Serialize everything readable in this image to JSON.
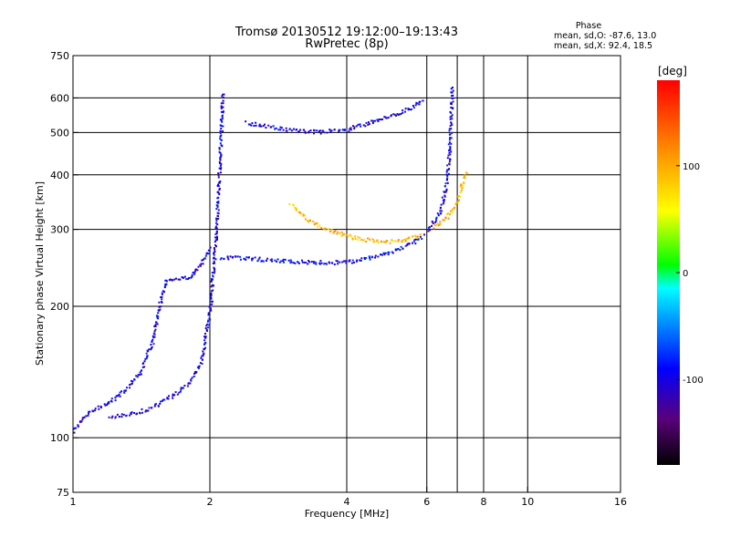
{
  "chart_data": {
    "type": "scatter",
    "title": "Tromsø 20130512 19:12:00–19:13:43",
    "subtitle": "RwPretec (8p)",
    "xlabel": "Frequency [MHz]",
    "ylabel": "Stationary phase Virtual Height [km]",
    "x_scale": "log",
    "y_scale": "log",
    "xlim": [
      1,
      16
    ],
    "ylim": [
      75,
      750
    ],
    "x_ticks": [
      1,
      2,
      4,
      6,
      8,
      10,
      16
    ],
    "x_tick_labels": [
      "1",
      "2",
      "4",
      "6",
      "8",
      "10",
      "16"
    ],
    "x_grid": [
      2,
      4,
      6,
      7,
      8,
      10
    ],
    "y_ticks": [
      75,
      100,
      200,
      300,
      400,
      500,
      600,
      750
    ],
    "y_tick_labels": [
      "75",
      "100",
      "200",
      "300",
      "400",
      "500",
      "600",
      "750"
    ],
    "y_grid": [
      100,
      200,
      300,
      400,
      500,
      600
    ],
    "stats": {
      "heading": "Phase",
      "line_o": "mean, sd,O: -87.6, 13.0",
      "line_x": "mean, sd,X:  92.4, 18.5"
    },
    "colorbar": {
      "label": "[deg]",
      "range": [
        -180,
        180
      ],
      "ticks": [
        -100,
        0,
        100
      ],
      "tick_labels": [
        "-100",
        "0",
        "100"
      ]
    },
    "traces": [
      {
        "mode": "O",
        "phase": -100,
        "points": [
          [
            1.0,
            104
          ],
          [
            1.05,
            112
          ],
          [
            1.1,
            116
          ],
          [
            1.2,
            121
          ],
          [
            1.3,
            129
          ],
          [
            1.4,
            141
          ],
          [
            1.5,
            170
          ],
          [
            1.55,
            205
          ],
          [
            1.6,
            232
          ],
          [
            1.8,
            233
          ],
          [
            1.9,
            250
          ],
          [
            2.0,
            275
          ]
        ]
      },
      {
        "mode": "O",
        "phase": -100,
        "points": [
          [
            1.2,
            112
          ],
          [
            1.4,
            115
          ],
          [
            1.55,
            120
          ],
          [
            1.7,
            128
          ],
          [
            1.8,
            135
          ],
          [
            1.9,
            148
          ],
          [
            1.95,
            170
          ],
          [
            2.0,
            200
          ],
          [
            2.02,
            230
          ],
          [
            2.04,
            260
          ],
          [
            2.06,
            300
          ],
          [
            2.08,
            360
          ],
          [
            2.1,
            450
          ],
          [
            2.12,
            550
          ],
          [
            2.13,
            620
          ]
        ]
      },
      {
        "mode": "O",
        "phase": -95,
        "points": [
          [
            2.1,
            260
          ],
          [
            2.3,
            259
          ],
          [
            2.6,
            257
          ],
          [
            3.0,
            254
          ],
          [
            3.5,
            253
          ],
          [
            4.0,
            253
          ],
          [
            4.5,
            260
          ],
          [
            5.0,
            268
          ],
          [
            5.5,
            278
          ],
          [
            5.9,
            292
          ]
        ]
      },
      {
        "mode": "O",
        "phase": -100,
        "points": [
          [
            2.4,
            528
          ],
          [
            2.6,
            522
          ],
          [
            3.0,
            508
          ],
          [
            3.5,
            504
          ],
          [
            4.0,
            510
          ],
          [
            4.5,
            530
          ],
          [
            5.0,
            548
          ],
          [
            5.5,
            570
          ],
          [
            5.9,
            600
          ]
        ]
      },
      {
        "mode": "O",
        "phase": -100,
        "points": [
          [
            6.0,
            300
          ],
          [
            6.4,
            330
          ],
          [
            6.6,
            380
          ],
          [
            6.7,
            450
          ],
          [
            6.75,
            520
          ],
          [
            6.8,
            640
          ]
        ]
      },
      {
        "mode": "X",
        "phase": 95,
        "points": [
          [
            3.0,
            345
          ],
          [
            3.3,
            315
          ],
          [
            3.7,
            298
          ],
          [
            4.2,
            287
          ],
          [
            4.8,
            282
          ],
          [
            5.3,
            284
          ],
          [
            5.8,
            292
          ]
        ]
      },
      {
        "mode": "X",
        "phase": 95,
        "points": [
          [
            6.2,
            305
          ],
          [
            6.6,
            320
          ],
          [
            7.0,
            350
          ],
          [
            7.3,
            410
          ]
        ]
      }
    ]
  }
}
